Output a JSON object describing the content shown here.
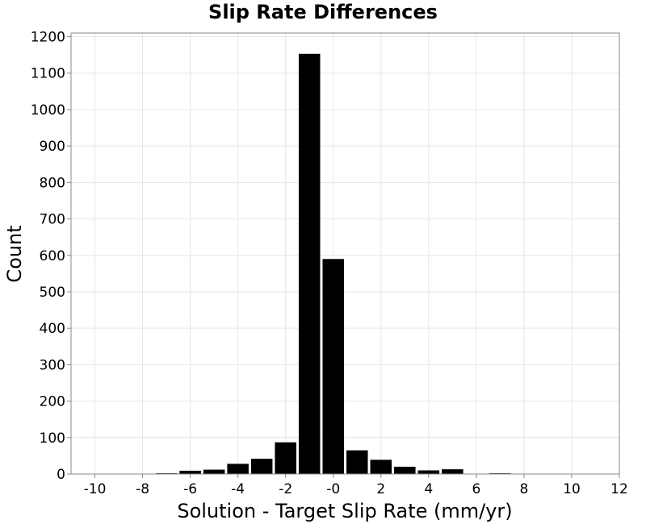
{
  "chart_data": {
    "type": "bar",
    "title": "Slip Rate Differences",
    "xlabel": "Solution - Target Slip Rate (mm/yr)",
    "ylabel": "Count",
    "xlim": [
      -11,
      12
    ],
    "ylim": [
      0,
      1210
    ],
    "bin_width": 1,
    "xticks": [
      -10,
      -8,
      -6,
      -4,
      -2,
      0,
      2,
      4,
      6,
      8,
      10,
      12
    ],
    "xtick_labels": [
      "-10",
      "-8",
      "-6",
      "-4",
      "-2",
      "-0",
      "2",
      "4",
      "6",
      "8",
      "10",
      "12"
    ],
    "yticks": [
      0,
      100,
      200,
      300,
      400,
      500,
      600,
      700,
      800,
      900,
      1000,
      1100,
      1200
    ],
    "grid": true,
    "bar_color": "#000000",
    "bins": [
      {
        "center": -10,
        "value": 0
      },
      {
        "center": -9,
        "value": 0
      },
      {
        "center": -8,
        "value": 0
      },
      {
        "center": -7,
        "value": 2
      },
      {
        "center": -6,
        "value": 9
      },
      {
        "center": -5,
        "value": 12
      },
      {
        "center": -4,
        "value": 28
      },
      {
        "center": -3,
        "value": 42
      },
      {
        "center": -2,
        "value": 87
      },
      {
        "center": -1,
        "value": 1153
      },
      {
        "center": 0,
        "value": 590
      },
      {
        "center": 1,
        "value": 65
      },
      {
        "center": 2,
        "value": 39
      },
      {
        "center": 3,
        "value": 20
      },
      {
        "center": 4,
        "value": 10
      },
      {
        "center": 5,
        "value": 13
      },
      {
        "center": 6,
        "value": 0
      },
      {
        "center": 7,
        "value": 2
      },
      {
        "center": 8,
        "value": 0
      },
      {
        "center": 9,
        "value": 0
      },
      {
        "center": 10,
        "value": 0
      },
      {
        "center": 11,
        "value": 0
      }
    ]
  }
}
